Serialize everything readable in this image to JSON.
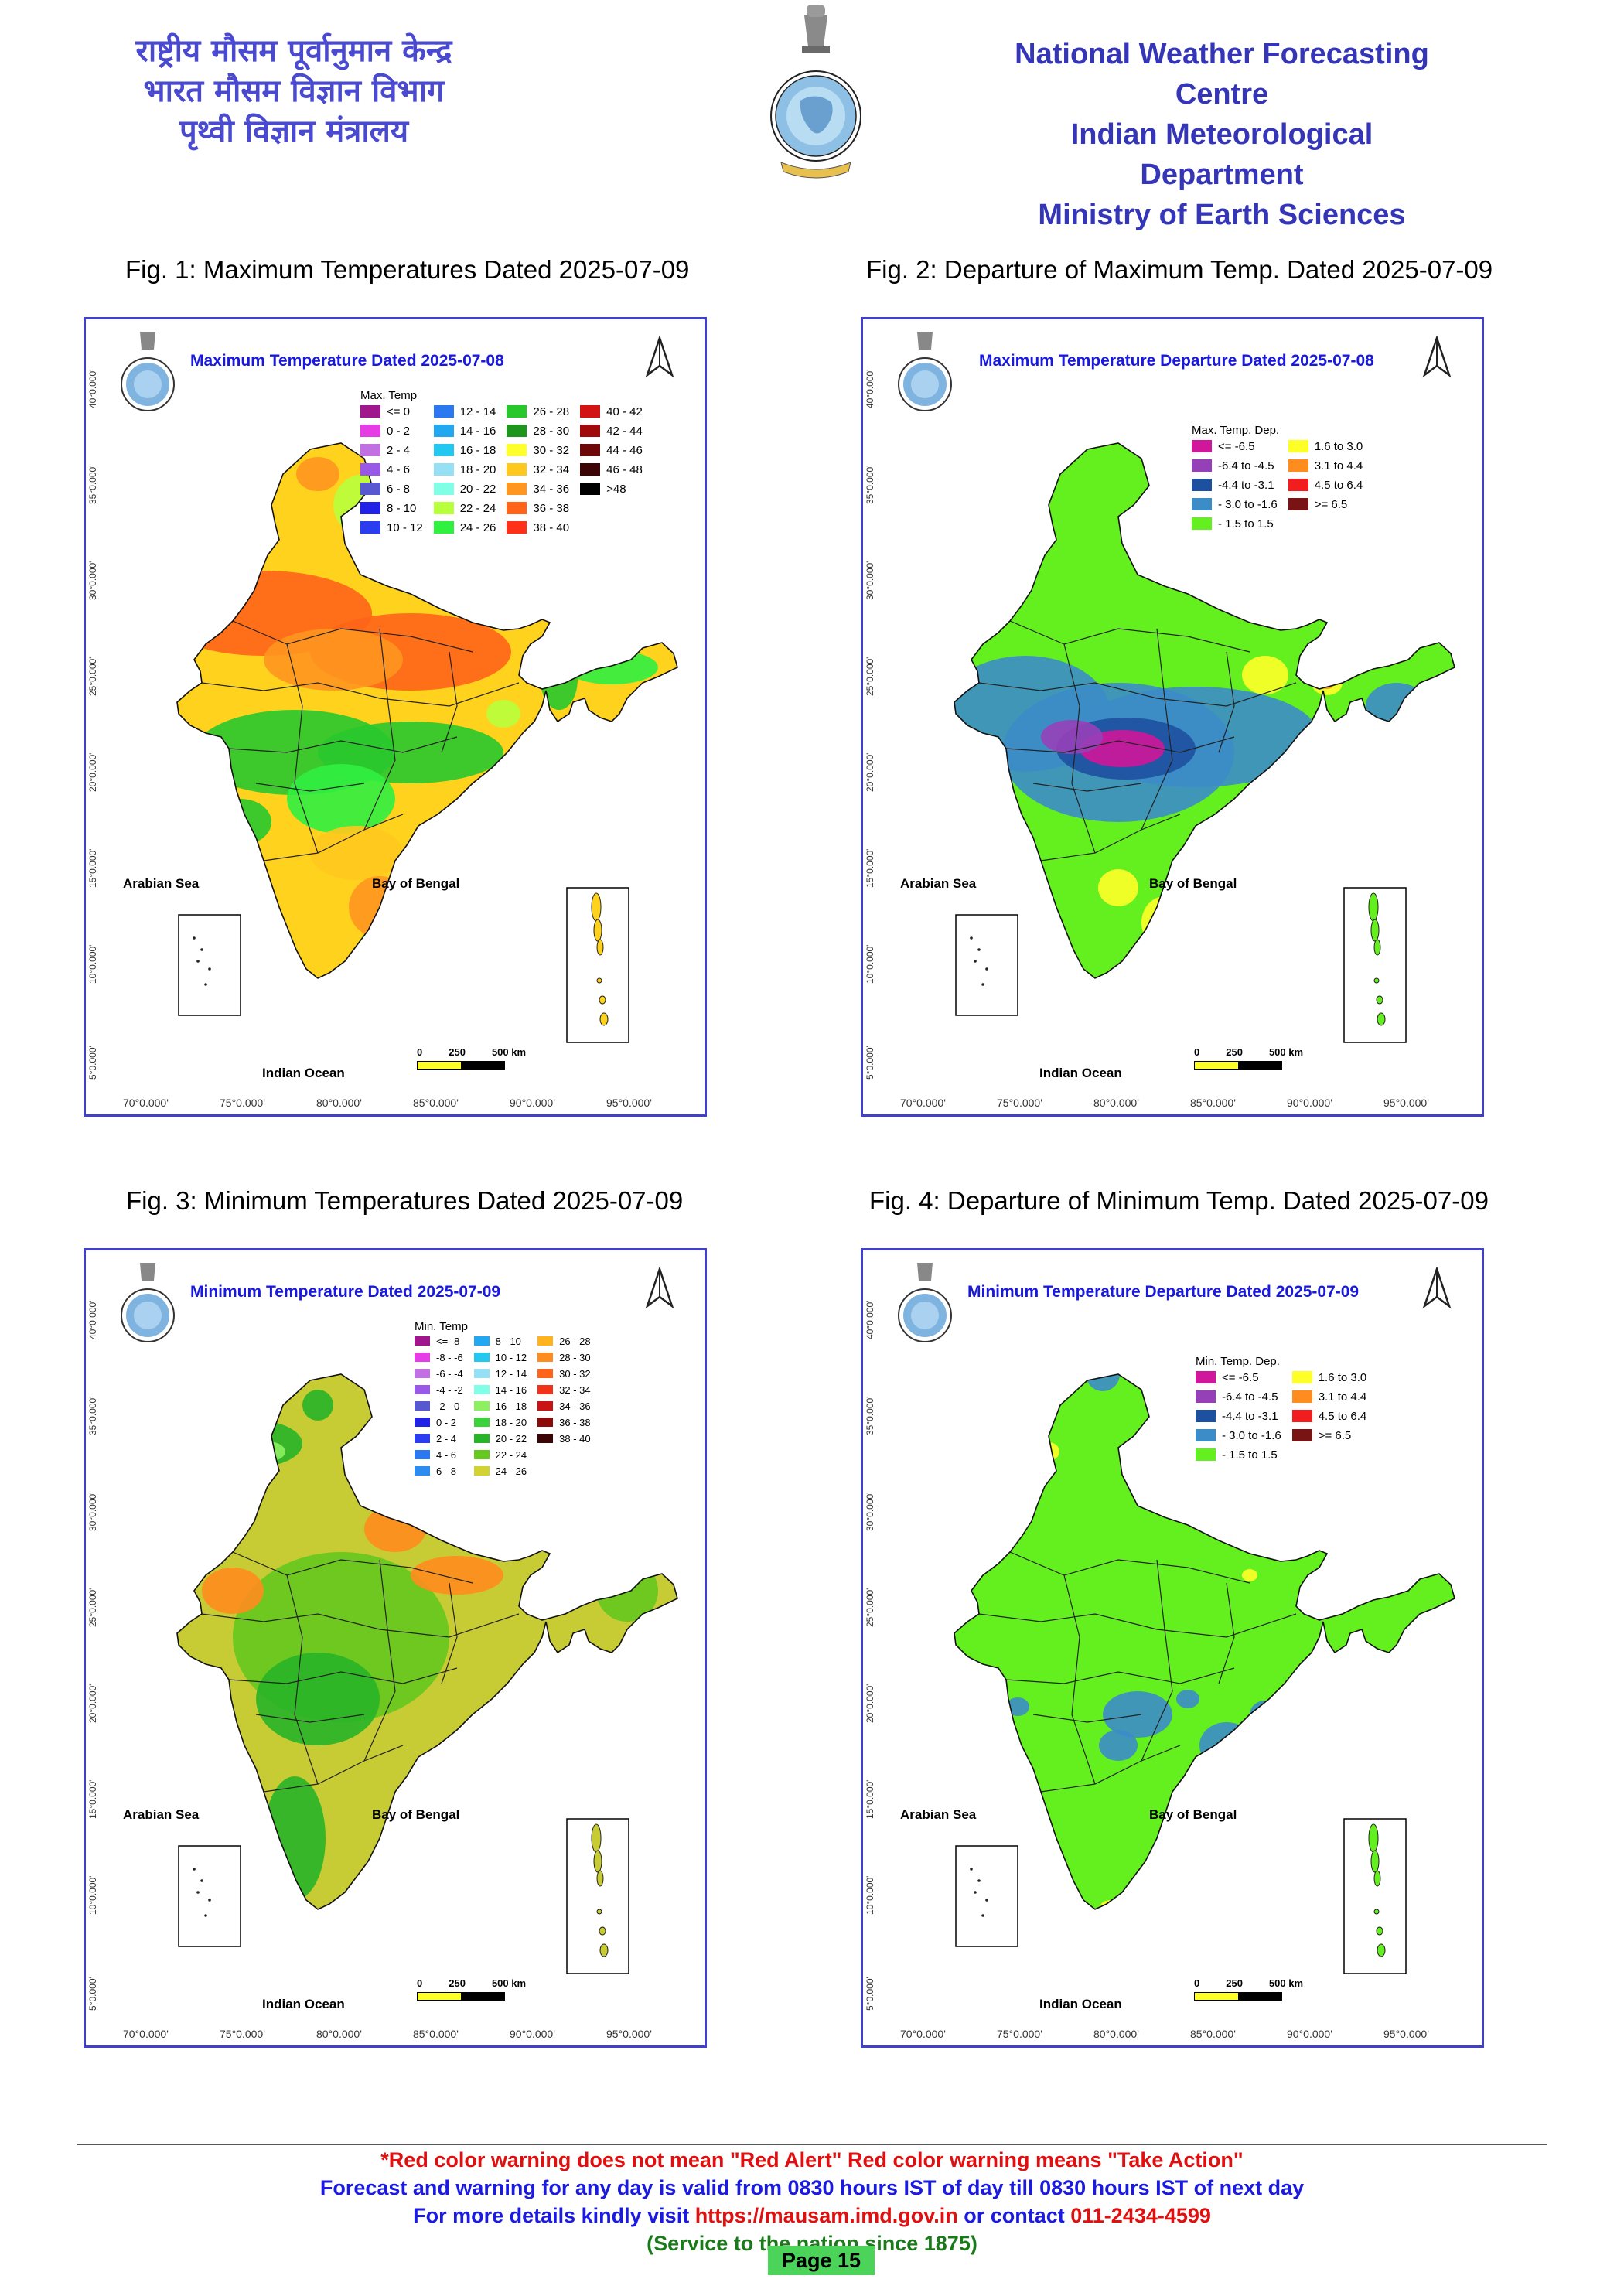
{
  "header": {
    "hindi_lines": [
      "राष्ट्रीय मौसम पूर्वानुमान केन्द्र",
      "भारत मौसम विज्ञान विभाग",
      "पृथ्वी विज्ञान मंत्रालय"
    ],
    "english_lines": [
      "National Weather Forecasting Centre",
      "Indian Meteorological Department",
      "Ministry of Earth Sciences"
    ]
  },
  "figures": [
    {
      "caption": "Fig. 1: Maximum Temperatures Dated 2025-07-09",
      "map_title": "Maximum Temperature Dated 2025-07-08",
      "legend_title": "Max. Temp",
      "legend_items": [
        {
          "label": "<= 0",
          "color": "#a0168c"
        },
        {
          "label": "0 - 2",
          "color": "#e63ce6"
        },
        {
          "label": "2 - 4",
          "color": "#c070e0"
        },
        {
          "label": "4 - 6",
          "color": "#9a58e6"
        },
        {
          "label": "6 - 8",
          "color": "#5858d0"
        },
        {
          "label": "8 - 10",
          "color": "#2222e6"
        },
        {
          "label": "10 - 12",
          "color": "#2a3ef0"
        },
        {
          "label": "12 - 14",
          "color": "#2c78f0"
        },
        {
          "label": "14 - 16",
          "color": "#22a8f0"
        },
        {
          "label": "16 - 18",
          "color": "#22c8f0"
        },
        {
          "label": "18 - 20",
          "color": "#96e0f6"
        },
        {
          "label": "20 - 22",
          "color": "#80ffe6"
        },
        {
          "label": "22 - 24",
          "color": "#b8ff3c"
        },
        {
          "label": "24 - 26",
          "color": "#30f040"
        },
        {
          "label": "26 - 28",
          "color": "#28c82c"
        },
        {
          "label": "28 - 30",
          "color": "#1e961e"
        },
        {
          "label": "30 - 32",
          "color": "#ffff2c"
        },
        {
          "label": "32 - 34",
          "color": "#ffc81e"
        },
        {
          "label": "34 - 36",
          "color": "#ff9620"
        },
        {
          "label": "36 - 38",
          "color": "#ff6418"
        },
        {
          "label": "38 - 40",
          "color": "#ff3018"
        },
        {
          "label": "40 - 42",
          "color": "#d21414"
        },
        {
          "label": "42 - 44",
          "color": "#a00a0a"
        },
        {
          "label": "44 - 46",
          "color": "#6e0808"
        },
        {
          "label": "46 - 48",
          "color": "#3c0505"
        },
        {
          "label": ">48",
          "color": "#000000"
        }
      ],
      "legend_columns": 4,
      "map_fill": "#ffd21e"
    },
    {
      "caption": "Fig. 2: Departure of Maximum Temp. Dated 2025-07-09",
      "map_title": "Maximum Temperature Departure Dated 2025-07-08",
      "legend_title": "Max. Temp. Dep.",
      "legend_items": [
        {
          "label": "<= -6.5",
          "color": "#d0169a"
        },
        {
          "label": "-6.4 to -4.5",
          "color": "#9640b8"
        },
        {
          "label": "-4.4 to -3.1",
          "color": "#1e50a0"
        },
        {
          "label": "- 3.0 to -1.6",
          "color": "#3c8cc8"
        },
        {
          "label": "- 1.5 to 1.5",
          "color": "#64f01e"
        },
        {
          "label": "1.6 to  3.0",
          "color": "#ffff28"
        },
        {
          "label": "3.1 to 4.4",
          "color": "#ff8c1e"
        },
        {
          "label": "4.5 to 6.4",
          "color": "#f01e1e"
        },
        {
          "label": ">= 6.5",
          "color": "#781414"
        }
      ],
      "legend_columns": 2,
      "map_fill": "#64f01e"
    },
    {
      "caption": "Fig. 3: Minimum Temperatures Dated 2025-07-09",
      "map_title": "Minimum Temperature Dated 2025-07-09",
      "legend_title": "Min. Temp",
      "legend_items": [
        {
          "label": "<= -8",
          "color": "#a0168c"
        },
        {
          "label": "-8 - -6",
          "color": "#e63ce6"
        },
        {
          "label": "-6 - -4",
          "color": "#c070e0"
        },
        {
          "label": "-4 - -2",
          "color": "#9a58e6"
        },
        {
          "label": "-2 - 0",
          "color": "#5858d0"
        },
        {
          "label": "0 - 2",
          "color": "#2222e6"
        },
        {
          "label": "2 - 4",
          "color": "#2a3ef0"
        },
        {
          "label": "4 - 6",
          "color": "#2c78f0"
        },
        {
          "label": "6 - 8",
          "color": "#2c8cf0"
        },
        {
          "label": "8 - 10",
          "color": "#22a8f0"
        },
        {
          "label": "10 - 12",
          "color": "#22c8f0"
        },
        {
          "label": "12 - 14",
          "color": "#96e0f6"
        },
        {
          "label": "14 - 16",
          "color": "#80ffe6"
        },
        {
          "label": "16 - 18",
          "color": "#8cf060"
        },
        {
          "label": "18 - 20",
          "color": "#3cd23c"
        },
        {
          "label": "20 - 22",
          "color": "#28b428"
        },
        {
          "label": "22 - 24",
          "color": "#64c81e"
        },
        {
          "label": "24 - 26",
          "color": "#d2d232"
        },
        {
          "label": "26 - 28",
          "color": "#ffb41e"
        },
        {
          "label": "28 - 30",
          "color": "#ff8c1e"
        },
        {
          "label": "30 - 32",
          "color": "#ff6418"
        },
        {
          "label": "32 - 34",
          "color": "#f03218"
        },
        {
          "label": "34 - 36",
          "color": "#c81414"
        },
        {
          "label": "36 - 38",
          "color": "#8c0a0a"
        },
        {
          "label": "38 - 40",
          "color": "#3c0505"
        }
      ],
      "legend_columns": 3,
      "map_fill": "#c8cc34"
    },
    {
      "caption": "Fig. 4: Departure of Minimum Temp. Dated 2025-07-09",
      "map_title": "Minimum Temperature Departure Dated 2025-07-09",
      "legend_title": "Min. Temp. Dep.",
      "legend_items": [
        {
          "label": "<= -6.5",
          "color": "#d0169a"
        },
        {
          "label": "-6.4 to -4.5",
          "color": "#9640b8"
        },
        {
          "label": "-4.4 to -3.1",
          "color": "#1e50a0"
        },
        {
          "label": "- 3.0 to -1.6",
          "color": "#3c8cc8"
        },
        {
          "label": "- 1.5 to 1.5",
          "color": "#64f01e"
        },
        {
          "label": "1.6 to  3.0",
          "color": "#ffff28"
        },
        {
          "label": "3.1 to 4.4",
          "color": "#ff8c1e"
        },
        {
          "label": "4.5 to 6.4",
          "color": "#f01e1e"
        },
        {
          "label": ">= 6.5",
          "color": "#781414"
        }
      ],
      "legend_columns": 2,
      "map_fill": "#64f01e"
    }
  ],
  "map_labels": {
    "arabian_sea": "Arabian Sea",
    "bay_of_bengal": "Bay of Bengal",
    "indian_ocean": "Indian Ocean",
    "scale": [
      "0",
      "250",
      "500 km"
    ],
    "lat_ticks": [
      "40°0.000'",
      "35°0.000'",
      "30°0.000'",
      "25°0.000'",
      "20°0.000'",
      "15°0.000'",
      "10°0.000'",
      "5°0.000'"
    ],
    "lon_ticks": [
      "70°0.000'",
      "75°0.000'",
      "80°0.000'",
      "85°0.000'",
      "90°0.000'",
      "95°0.000'"
    ]
  },
  "footer": {
    "line1": "*Red color warning does not mean \"Red Alert\" Red color warning means \"Take Action\"",
    "line2": "Forecast and warning for any day is valid from 0830 hours IST of day till 0830 hours IST of next day",
    "line3_prefix": "For more details kindly visit ",
    "line3_link": "https://mausam.imd.gov.in",
    "line3_mid": " or contact ",
    "line3_phone": "011-2434-4599",
    "line4": "(Service to the nation since 1875)",
    "page": "Page 15",
    "colors": {
      "red": "#e01010",
      "blue": "#1a1ae0",
      "green": "#1a7a1a"
    }
  }
}
